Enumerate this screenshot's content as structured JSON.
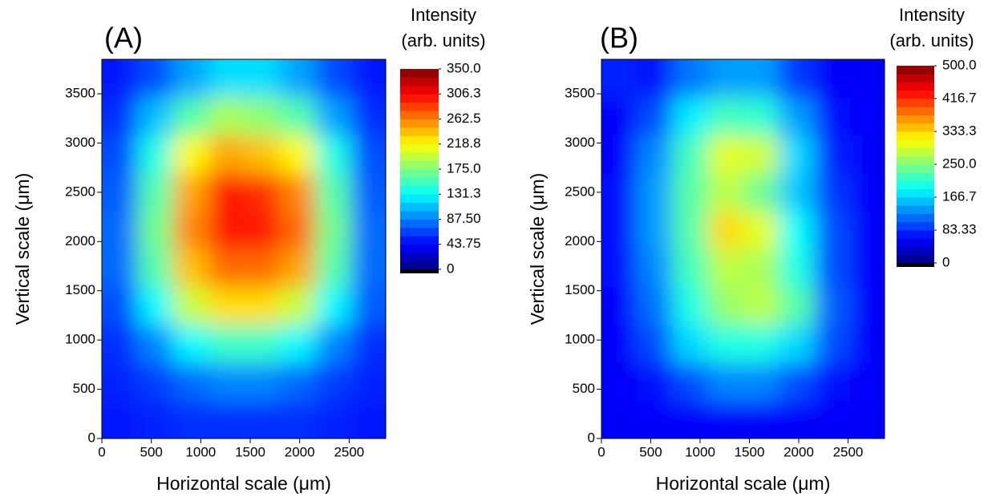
{
  "chart_data": [
    {
      "type": "heatmap",
      "panel_label": "(A)",
      "xlabel": "Horizontal scale (μm)",
      "ylabel": "Vertical scale (μm)",
      "colorbar_label": [
        "Intensity",
        "(arb. units)"
      ],
      "colormap": "jet",
      "xlim": [
        0,
        2870
      ],
      "ylim": [
        0,
        3850
      ],
      "xticks": [
        0,
        500,
        1000,
        1500,
        2000,
        2500
      ],
      "yticks": [
        0,
        500,
        1000,
        1500,
        2000,
        2500,
        3000,
        3500
      ],
      "clim": [
        0,
        350
      ],
      "cticks": [
        0,
        43.75,
        {
          "value": 87.5,
          "label": "87.50"
        },
        131.3,
        {
          "value": 175,
          "label": "175.0"
        },
        218.8,
        262.5,
        306.3,
        {
          "value": 350,
          "label": "350.0"
        }
      ],
      "x": [
        180,
        540,
        900,
        1260,
        1620,
        1980,
        2340,
        2700
      ],
      "y": [
        192,
        577,
        962,
        1347,
        1732,
        2117,
        2502,
        2887,
        3272,
        3657
      ],
      "z": [
        [
          50,
          55,
          60,
          60,
          60,
          60,
          55,
          50
        ],
        [
          55,
          65,
          80,
          90,
          90,
          80,
          65,
          55
        ],
        [
          60,
          90,
          130,
          150,
          150,
          130,
          90,
          60
        ],
        [
          70,
          130,
          200,
          230,
          230,
          200,
          130,
          75
        ],
        [
          80,
          160,
          240,
          270,
          270,
          250,
          160,
          80
        ],
        [
          80,
          170,
          260,
          300,
          300,
          270,
          170,
          80
        ],
        [
          75,
          160,
          250,
          300,
          290,
          260,
          160,
          75
        ],
        [
          70,
          140,
          220,
          250,
          240,
          220,
          140,
          70
        ],
        [
          60,
          110,
          160,
          190,
          180,
          160,
          100,
          60
        ],
        [
          50,
          70,
          100,
          120,
          120,
          100,
          70,
          50
        ]
      ]
    },
    {
      "type": "heatmap",
      "panel_label": "(B)",
      "xlabel": "Horizontal scale (μm)",
      "ylabel": "Vertical scale (μm)",
      "colorbar_label": [
        "Intensity",
        "(arb. units)"
      ],
      "colormap": "jet",
      "xlim": [
        0,
        2870
      ],
      "ylim": [
        0,
        3850
      ],
      "xticks": [
        0,
        500,
        1000,
        1500,
        2000,
        2500
      ],
      "yticks": [
        0,
        500,
        1000,
        1500,
        2000,
        2500,
        3000,
        3500
      ],
      "clim": [
        0,
        500
      ],
      "cticks": [
        0,
        83.33,
        166.7,
        {
          "value": 250,
          "label": "250.0"
        },
        333.3,
        416.7,
        {
          "value": 500,
          "label": "500.0"
        }
      ],
      "x": [
        180,
        540,
        900,
        1260,
        1620,
        1980,
        2340,
        2700
      ],
      "y": [
        192,
        577,
        962,
        1347,
        1732,
        2117,
        2502,
        2887,
        3272,
        3657
      ],
      "z": [
        [
          60,
          60,
          60,
          60,
          60,
          60,
          60,
          60
        ],
        [
          60,
          70,
          100,
          130,
          130,
          100,
          70,
          60
        ],
        [
          60,
          100,
          170,
          200,
          200,
          170,
          100,
          60
        ],
        [
          60,
          120,
          200,
          260,
          280,
          230,
          110,
          60
        ],
        [
          70,
          130,
          220,
          280,
          270,
          200,
          100,
          60
        ],
        [
          70,
          140,
          230,
          330,
          300,
          190,
          100,
          60
        ],
        [
          70,
          140,
          230,
          280,
          240,
          160,
          90,
          60
        ],
        [
          60,
          130,
          220,
          300,
          290,
          170,
          80,
          60
        ],
        [
          60,
          100,
          180,
          220,
          210,
          140,
          70,
          60
        ],
        [
          80,
          70,
          120,
          140,
          140,
          90,
          60,
          60
        ]
      ]
    }
  ]
}
